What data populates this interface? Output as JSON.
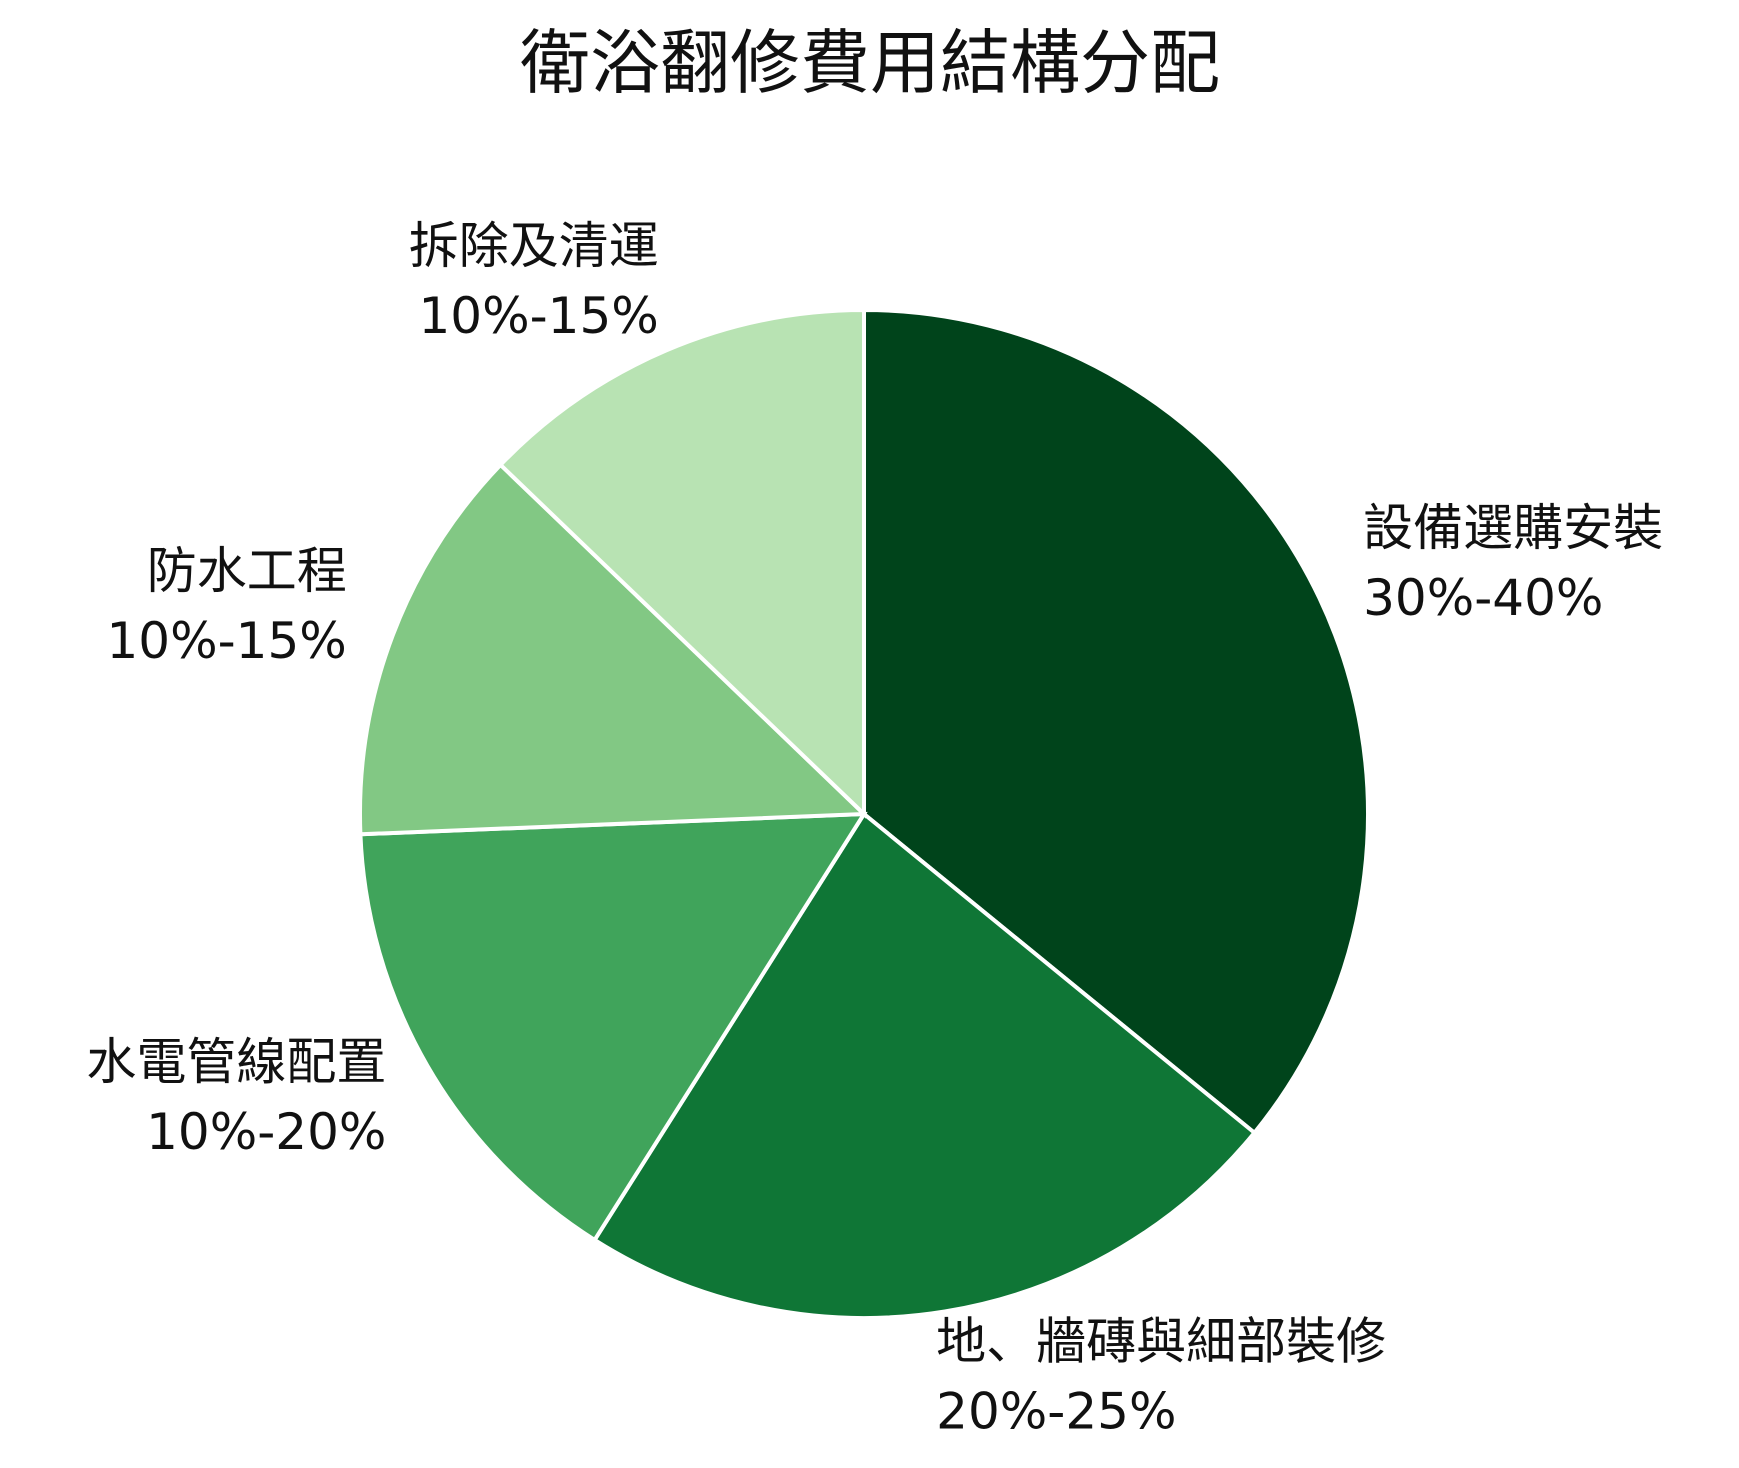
{
  "chart_data": {
    "type": "pie",
    "title": "衛浴翻修費用結構分配",
    "categories": [
      "設備選購安裝",
      "地、牆磚與細部裝修",
      "水電管線配置",
      "防水工程",
      "拆除及清運"
    ],
    "values": [
      35,
      22.5,
      15,
      12.5,
      12.5
    ],
    "value_labels": [
      "30%-40%",
      "20%-25%",
      "10%-20%",
      "10%-15%",
      "10%-15%"
    ],
    "colors": [
      "#00441b",
      "#0f7636",
      "#40a45b",
      "#82c884",
      "#b8e3b3"
    ]
  }
}
